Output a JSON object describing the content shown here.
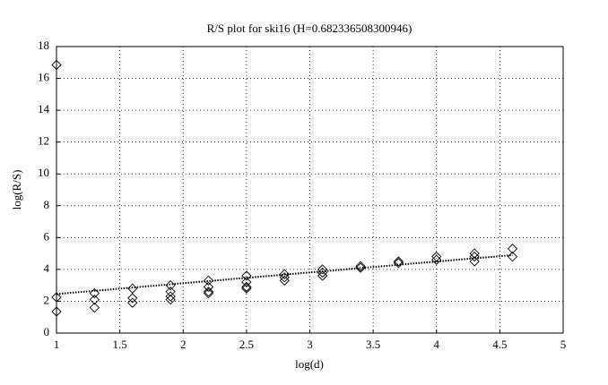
{
  "chart_data": {
    "type": "scatter",
    "title": "R/S plot for ski16 (H=0.682336508300946)",
    "xlabel": "log(d)",
    "ylabel": "log(R/S)",
    "xlim": [
      1,
      5
    ],
    "xticks": [
      1,
      1.5,
      2,
      2.5,
      3,
      3.5,
      4,
      4.5,
      5
    ],
    "ylim": [
      0,
      18
    ],
    "yticks": [
      0,
      2,
      4,
      6,
      8,
      10,
      12,
      14,
      16,
      18
    ],
    "grid": true,
    "series": [
      {
        "type": "scatter",
        "marker": "diamond",
        "color": "#000000",
        "x": [
          1,
          1,
          1,
          1.3,
          1.3,
          1.3,
          1.6,
          1.6,
          1.6,
          1.9,
          1.9,
          1.9,
          1.9,
          2.2,
          2.2,
          2.2,
          2.2,
          2.5,
          2.5,
          2.5,
          2.5,
          2.8,
          2.8,
          2.8,
          3.1,
          3.1,
          3.1,
          3.4,
          3.4,
          3.7,
          3.7,
          4.0,
          4.0,
          4.3,
          4.3,
          4.3,
          4.6,
          4.6
        ],
        "values": [
          16.85,
          2.25,
          1.35,
          2.5,
          2.1,
          1.6,
          2.8,
          2.2,
          1.9,
          3.0,
          2.6,
          2.3,
          2.1,
          3.3,
          2.9,
          2.6,
          2.5,
          3.6,
          3.2,
          2.9,
          2.8,
          3.7,
          3.5,
          3.3,
          4.0,
          3.8,
          3.6,
          4.2,
          4.1,
          4.5,
          4.4,
          4.8,
          4.6,
          5.0,
          4.8,
          4.5,
          5.3,
          4.8
        ]
      },
      {
        "type": "line",
        "linestyle": "dotted",
        "color": "#000000",
        "x": [
          1,
          4.6
        ],
        "values": [
          2.45,
          4.9
        ]
      }
    ]
  }
}
